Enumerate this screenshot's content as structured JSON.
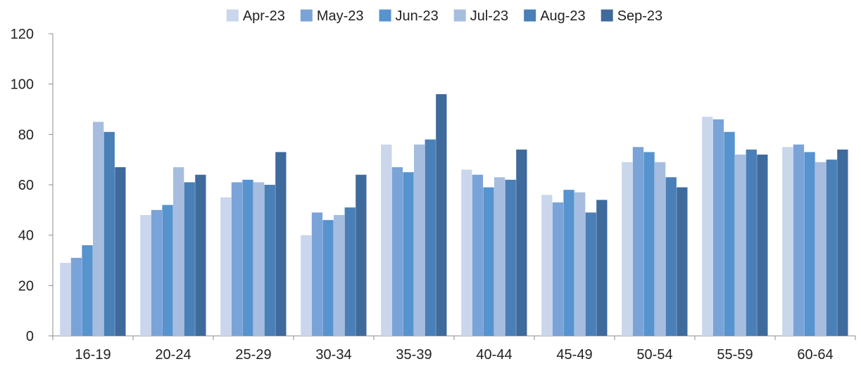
{
  "chart_data": {
    "type": "bar",
    "title": "",
    "xlabel": "",
    "ylabel": "",
    "categories": [
      "16-19",
      "20-24",
      "25-29",
      "30-34",
      "35-39",
      "40-44",
      "45-49",
      "50-54",
      "55-59",
      "60-64"
    ],
    "ylim": [
      0,
      120
    ],
    "yticks": [
      0,
      20,
      40,
      60,
      80,
      100,
      120
    ],
    "grid": false,
    "legend_position": "top-center",
    "series": [
      {
        "name": "Apr-23",
        "color": "#c9d6ec",
        "values": [
          29,
          48,
          55,
          40,
          76,
          66,
          56,
          69,
          87,
          75
        ]
      },
      {
        "name": "May-23",
        "color": "#7aa3d8",
        "values": [
          31,
          50,
          61,
          49,
          67,
          64,
          53,
          75,
          86,
          76
        ]
      },
      {
        "name": "Jun-23",
        "color": "#5693cf",
        "values": [
          36,
          52,
          62,
          46,
          65,
          59,
          58,
          73,
          81,
          73
        ]
      },
      {
        "name": "Jul-23",
        "color": "#a6bde0",
        "values": [
          85,
          67,
          61,
          48,
          76,
          63,
          57,
          69,
          72,
          69
        ]
      },
      {
        "name": "Aug-23",
        "color": "#4a7fb7",
        "values": [
          81,
          61,
          60,
          51,
          78,
          62,
          49,
          63,
          74,
          70
        ]
      },
      {
        "name": "Sep-23",
        "color": "#3f6a9c",
        "values": [
          67,
          64,
          73,
          64,
          96,
          74,
          54,
          59,
          72,
          74
        ]
      }
    ]
  }
}
